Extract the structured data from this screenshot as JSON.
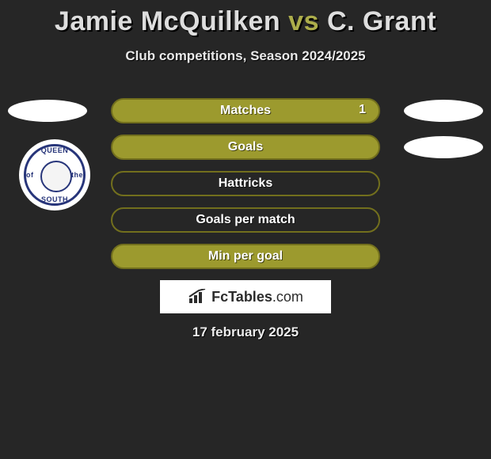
{
  "title": {
    "player_a": "Jamie McQuilken",
    "vs": "vs",
    "player_b": "C. Grant",
    "accent_color": "#acad4b",
    "text_color": "#dedede"
  },
  "subtitle": "Club competitions, Season 2024/2025",
  "background_color": "#262626",
  "bars": {
    "fill_color": "#9c9a2e",
    "border_color": "#726f1d",
    "label_color": "#ffffff",
    "items": [
      {
        "label": "Matches",
        "value_right": "1",
        "filled": true,
        "show_left_pill": true,
        "show_right_pill": true
      },
      {
        "label": "Goals",
        "value_right": "",
        "filled": true,
        "show_left_pill": false,
        "show_right_pill": true
      },
      {
        "label": "Hattricks",
        "value_right": "",
        "filled": false,
        "show_left_pill": false,
        "show_right_pill": false
      },
      {
        "label": "Goals per match",
        "value_right": "",
        "filled": false,
        "show_left_pill": false,
        "show_right_pill": false
      },
      {
        "label": "Min per goal",
        "value_right": "",
        "filled": true,
        "show_left_pill": false,
        "show_right_pill": false
      }
    ]
  },
  "pill_color": "#ffffff",
  "crest": {
    "top": "QUEEN",
    "left": "of",
    "right": "the",
    "bottom": "SOUTH",
    "ring_color": "#27357a"
  },
  "brand": {
    "name_strong": "FcTables",
    "name_light": ".com"
  },
  "date": "17 february 2025"
}
